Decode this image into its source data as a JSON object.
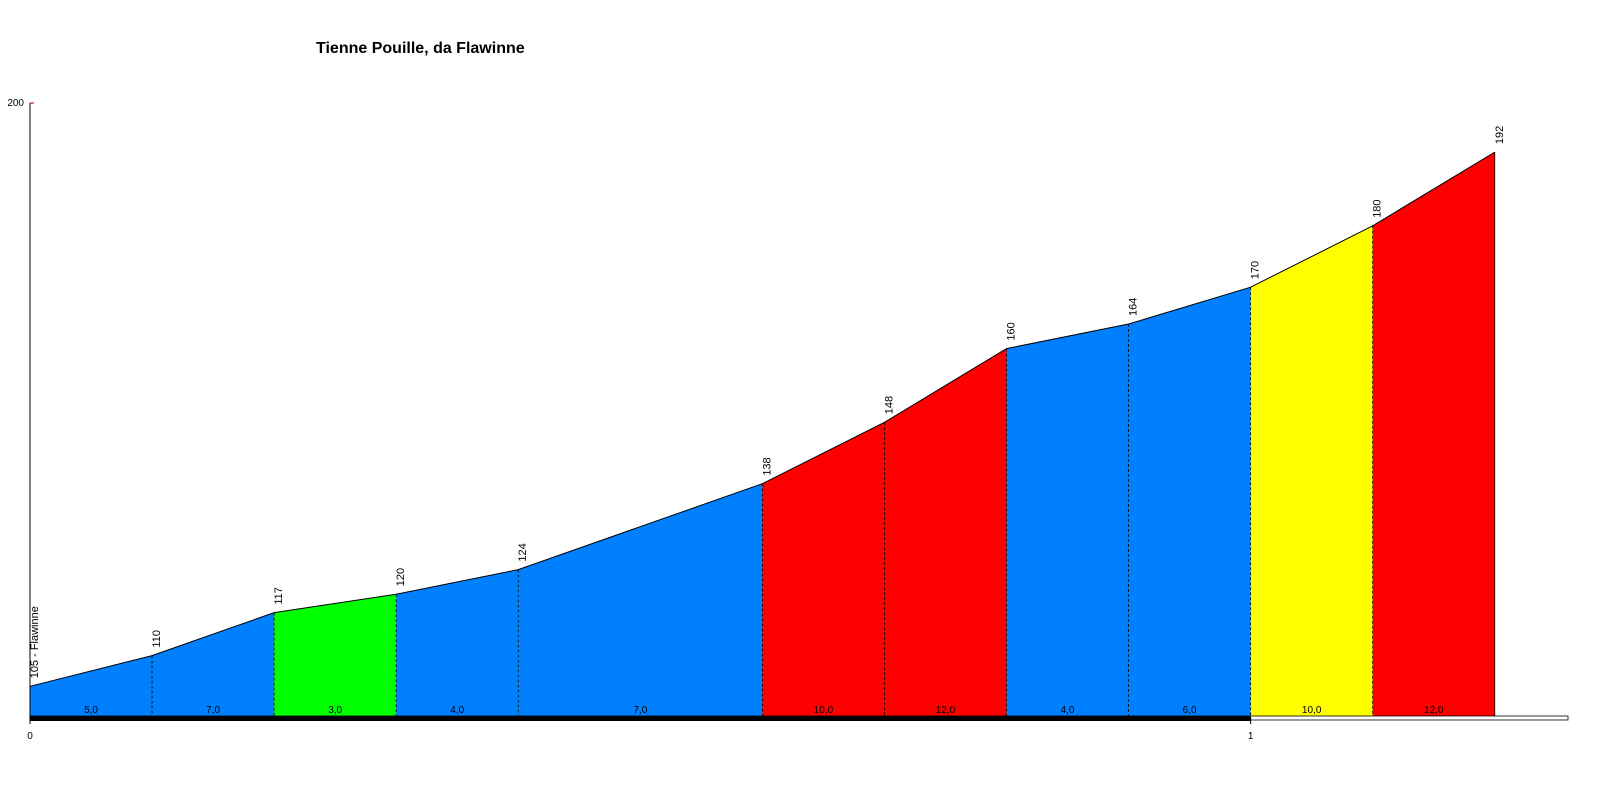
{
  "chart_data": {
    "type": "profile",
    "title": "Tienne Pouille, da Flawinne",
    "x": [
      0,
      0.1,
      0.2,
      0.3,
      0.4,
      0.6,
      0.7,
      0.8,
      0.9,
      1.0,
      1.1,
      1.2
    ],
    "values": [
      105,
      110,
      117,
      120,
      124,
      138,
      148,
      160,
      164,
      170,
      180,
      192
    ],
    "value_labels": [
      "105 - Flawinne",
      "110",
      "117",
      "120",
      "124",
      "138",
      "148",
      "160",
      "164",
      "170",
      "180",
      "192"
    ],
    "segments": [
      {
        "gradient": 5,
        "label": "5,0",
        "color": "#0080ff"
      },
      {
        "gradient": 7,
        "label": "7,0",
        "color": "#0080ff"
      },
      {
        "gradient": 3,
        "label": "3,0",
        "color": "#00ff00"
      },
      {
        "gradient": 4,
        "label": "4,0",
        "color": "#0080ff"
      },
      {
        "gradient": 7,
        "label": "7,0",
        "color": "#0080ff"
      },
      {
        "gradient": 10,
        "label": "10,0",
        "color": "#ff0000"
      },
      {
        "gradient": 12,
        "label": "12,0",
        "color": "#ff0000"
      },
      {
        "gradient": 4,
        "label": "4,0",
        "color": "#0080ff"
      },
      {
        "gradient": 6,
        "label": "6,0",
        "color": "#0080ff"
      },
      {
        "gradient": 10,
        "label": "10,0",
        "color": "#ffff00"
      },
      {
        "gradient": 12,
        "label": "12,0",
        "color": "#ff0000"
      }
    ],
    "xlim": [
      0,
      1.26
    ],
    "xticks": [
      0,
      1
    ],
    "ylim": [
      100,
      200
    ],
    "yticks": [
      200
    ]
  }
}
